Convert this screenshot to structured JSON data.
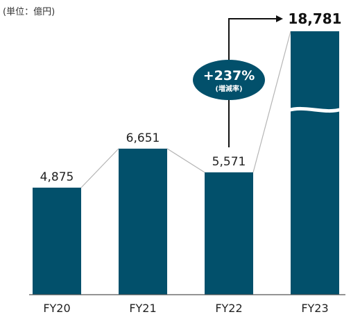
{
  "unit_label": "(単位：億円)",
  "colors": {
    "bar": "#02506b",
    "axis": "#555555",
    "connector": "#b5b5b5",
    "arrow": "#111111"
  },
  "growth": {
    "value": "+237%",
    "label": "(増減率)"
  },
  "chart_data": {
    "type": "bar",
    "categories": [
      "FY20",
      "FY21",
      "FY22",
      "FY23"
    ],
    "values": [
      4875,
      6651,
      5571,
      18781
    ],
    "value_labels": [
      "4,875",
      "6,651",
      "5,571",
      "18,781"
    ],
    "title": "",
    "xlabel": "",
    "ylabel": "",
    "broken_axis": true,
    "grid": false,
    "legend": "none"
  }
}
